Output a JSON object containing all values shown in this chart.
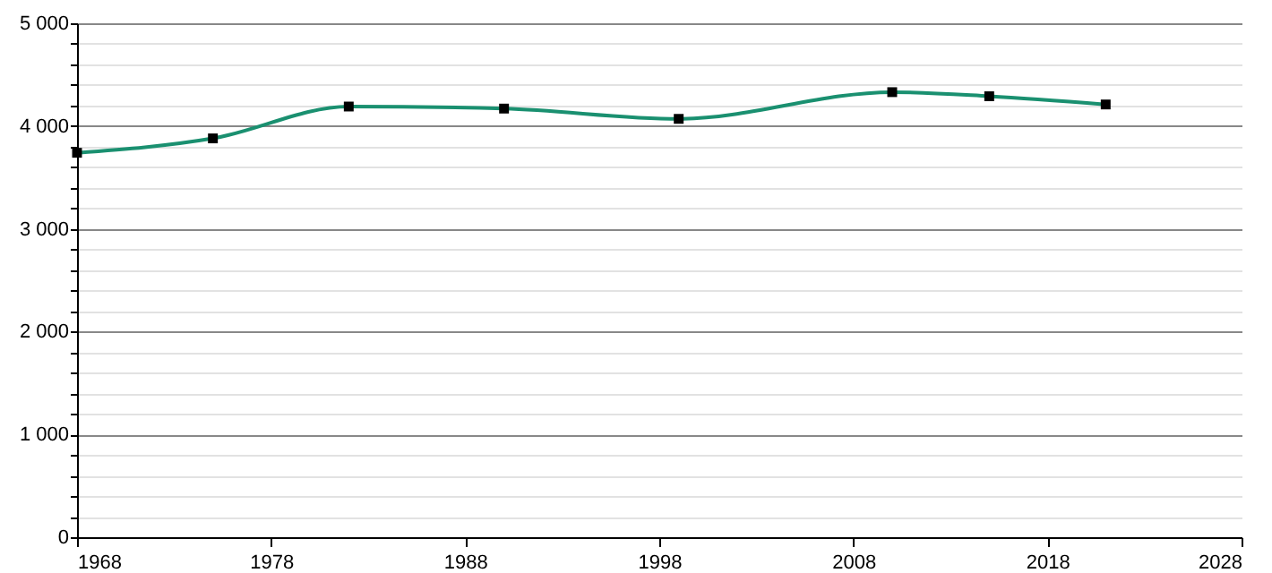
{
  "chart_data": {
    "type": "line",
    "x": [
      1968,
      1975,
      1982,
      1990,
      1999,
      2010,
      2015,
      2021
    ],
    "series": [
      {
        "color": "#1a9070",
        "values": [
          3740,
          3880,
          4190,
          4170,
          4070,
          4330,
          4290,
          4210
        ]
      }
    ],
    "xlim": [
      1968,
      2028
    ],
    "xticks": [
      1968,
      1978,
      1988,
      1998,
      2008,
      2018,
      2028
    ],
    "ylim": [
      0,
      5000
    ],
    "yticks": [
      0,
      {
        "value": 200,
        "label": null
      },
      {
        "value": 400,
        "label": null
      },
      {
        "value": 600,
        "label": null
      },
      {
        "value": 800,
        "label": null
      },
      {
        "value": 1000,
        "label": "1 000"
      },
      {
        "value": 1200,
        "label": null
      },
      {
        "value": 1400,
        "label": null
      },
      {
        "value": 1600,
        "label": null
      },
      {
        "value": 1800,
        "label": null
      },
      {
        "value": 2000,
        "label": "2 000"
      },
      {
        "value": 2200,
        "label": null
      },
      {
        "value": 2400,
        "label": null
      },
      {
        "value": 2600,
        "label": null
      },
      {
        "value": 2800,
        "label": null
      },
      {
        "value": 3000,
        "label": "3 000"
      },
      {
        "value": 3200,
        "label": null
      },
      {
        "value": 3400,
        "label": null
      },
      {
        "value": 3600,
        "label": null
      },
      {
        "value": 3800,
        "label": null
      },
      {
        "value": 4000,
        "label": "4 000"
      },
      {
        "value": 4200,
        "label": null
      },
      {
        "value": 4400,
        "label": null
      },
      {
        "value": 4600,
        "label": null
      },
      {
        "value": 4800,
        "label": null
      },
      {
        "value": 5000,
        "label": "5 000"
      }
    ],
    "grid": "y",
    "marker": "square",
    "line_style": "solid"
  }
}
